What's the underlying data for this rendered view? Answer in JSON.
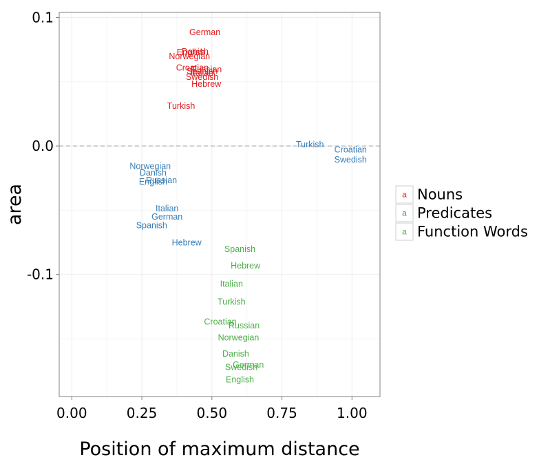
{
  "chart_data": {
    "type": "scatter",
    "title": "",
    "xlabel": "Position of maximum distance",
    "ylabel": "area",
    "xlim": [
      -0.045,
      1.1
    ],
    "ylim": [
      -0.195,
      0.104
    ],
    "x_ticks": [
      0.0,
      0.25,
      0.5,
      0.75,
      1.0
    ],
    "x_tick_labels": [
      "0.00",
      "0.25",
      "0.50",
      "0.75",
      "1.00"
    ],
    "y_ticks": [
      0.1,
      0.0,
      -0.1
    ],
    "y_tick_labels": [
      "0.1",
      "0.0",
      "-0.1"
    ],
    "grid": true,
    "reference_line": {
      "y": 0.0,
      "style": "dashed"
    },
    "point_marker": "text",
    "legend": {
      "placement": "right",
      "key_letter": "a",
      "entries": [
        "Nouns",
        "Predicates",
        "Function Words"
      ]
    },
    "colors": {
      "Nouns": "#e41a1c",
      "Predicates": "#377eb8",
      "Function Words": "#4daf4a"
    },
    "series": [
      {
        "name": "Nouns",
        "points": [
          {
            "label": "German",
            "x": 0.475,
            "y": 0.0887
          },
          {
            "label": "Danish",
            "x": 0.44,
            "y": 0.0738
          },
          {
            "label": "English",
            "x": 0.425,
            "y": 0.0733
          },
          {
            "label": "Norwegian",
            "x": 0.42,
            "y": 0.07
          },
          {
            "label": "Croatian",
            "x": 0.43,
            "y": 0.0612
          },
          {
            "label": "Russian",
            "x": 0.48,
            "y": 0.0597
          },
          {
            "label": "Spanish",
            "x": 0.465,
            "y": 0.0585
          },
          {
            "label": "Italian",
            "x": 0.465,
            "y": 0.057
          },
          {
            "label": "Swedish",
            "x": 0.465,
            "y": 0.054
          },
          {
            "label": "Hebrew",
            "x": 0.48,
            "y": 0.0485
          },
          {
            "label": "Turkish",
            "x": 0.39,
            "y": 0.0315
          }
        ]
      },
      {
        "name": "Predicates",
        "points": [
          {
            "label": "Turkish",
            "x": 0.85,
            "y": 0.0015
          },
          {
            "label": "Croatian",
            "x": 0.995,
            "y": -0.0025
          },
          {
            "label": "Swedish",
            "x": 0.995,
            "y": -0.0105
          },
          {
            "label": "Norwegian",
            "x": 0.28,
            "y": -0.0155
          },
          {
            "label": "Danish",
            "x": 0.29,
            "y": -0.0205
          },
          {
            "label": "Russian",
            "x": 0.32,
            "y": -0.0265
          },
          {
            "label": "English",
            "x": 0.29,
            "y": -0.0275
          },
          {
            "label": "Italian",
            "x": 0.34,
            "y": -0.0485
          },
          {
            "label": "German",
            "x": 0.34,
            "y": -0.055
          },
          {
            "label": "Spanish",
            "x": 0.285,
            "y": -0.0615
          },
          {
            "label": "Hebrew",
            "x": 0.41,
            "y": -0.075
          }
        ]
      },
      {
        "name": "Function Words",
        "points": [
          {
            "label": "Spanish",
            "x": 0.6,
            "y": -0.08
          },
          {
            "label": "Hebrew",
            "x": 0.62,
            "y": -0.093
          },
          {
            "label": "Italian",
            "x": 0.57,
            "y": -0.107
          },
          {
            "label": "Turkish",
            "x": 0.57,
            "y": -0.121
          },
          {
            "label": "Croatian",
            "x": 0.53,
            "y": -0.1365
          },
          {
            "label": "Russian",
            "x": 0.615,
            "y": -0.1395
          },
          {
            "label": "Norwegian",
            "x": 0.595,
            "y": -0.149
          },
          {
            "label": "Danish",
            "x": 0.585,
            "y": -0.1615
          },
          {
            "label": "German",
            "x": 0.63,
            "y": -0.17
          },
          {
            "label": "Swedish",
            "x": 0.605,
            "y": -0.172
          },
          {
            "label": "English",
            "x": 0.6,
            "y": -0.1815
          }
        ]
      }
    ]
  }
}
